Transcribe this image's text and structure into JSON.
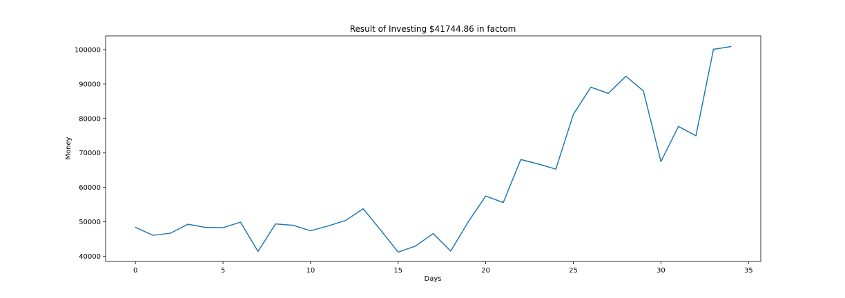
{
  "chart_data": {
    "type": "line",
    "title": "Result of Investing $41744.86 in factom",
    "xlabel": "Days",
    "ylabel": "Money",
    "xlim": [
      -1.7,
      35.7
    ],
    "ylim": [
      38500,
      104000
    ],
    "xticks": [
      0,
      5,
      10,
      15,
      20,
      25,
      30,
      35
    ],
    "yticks": [
      40000,
      50000,
      60000,
      70000,
      80000,
      90000,
      100000
    ],
    "grid": false,
    "line_color": "#1f77b4",
    "series": [
      {
        "x": [
          0,
          1,
          2,
          3,
          4,
          5,
          6,
          7,
          8,
          9,
          10,
          11,
          12,
          13,
          14,
          15,
          16,
          17,
          18,
          19,
          20,
          21,
          22,
          23,
          24,
          25,
          26,
          27,
          28,
          29,
          30,
          31,
          32,
          33,
          34
        ],
        "values": [
          48400,
          46100,
          46700,
          49300,
          48400,
          48300,
          49900,
          41400,
          49400,
          49000,
          47400,
          48800,
          50400,
          53800,
          47600,
          41200,
          43000,
          46600,
          41500,
          50000,
          57500,
          55600,
          68100,
          66800,
          65300,
          81200,
          89100,
          87300,
          92300,
          88000,
          67500,
          77700,
          75000,
          100100,
          100900
        ]
      }
    ]
  }
}
